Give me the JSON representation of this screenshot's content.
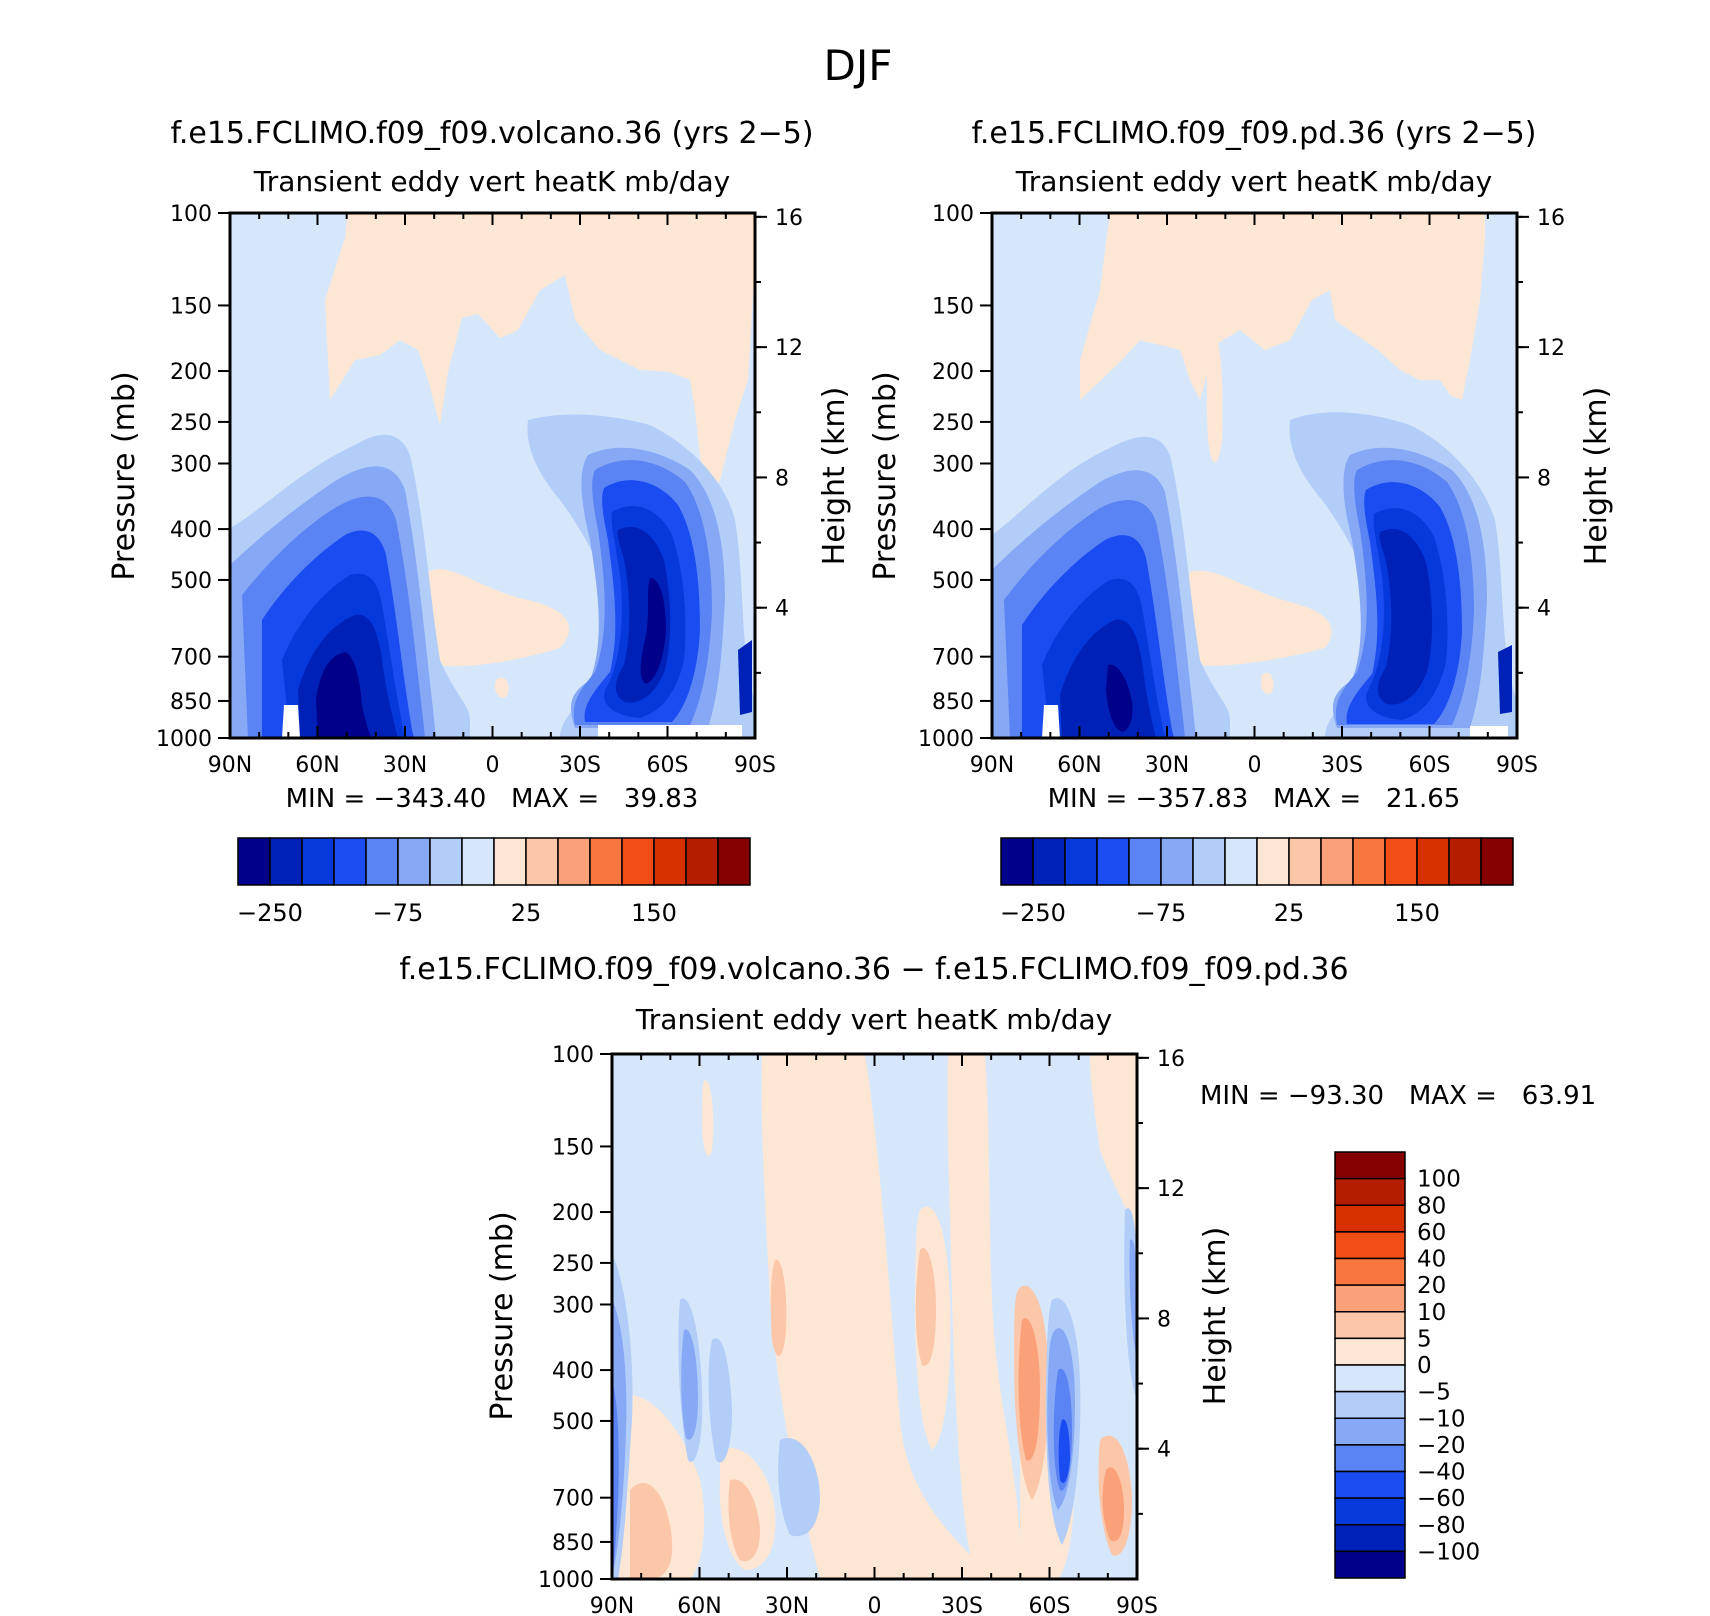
{
  "figure_title": "DJF",
  "colors": {
    "blue_dark": "#00008a",
    "blue": "#1d4de8",
    "blue_light": "#a9c6f6",
    "blue_pale": "#d6e7fb",
    "peach": "#fde7d4",
    "orange": "#f97a40",
    "red_dark": "#850000"
  },
  "chart_data": [
    {
      "type": "contour",
      "title": "f.e15.FCLIMO.f09_f09.volcano.36 (yrs 2−5)",
      "subtitle": "Transient eddy vert heatK mb/day",
      "ylabel": "Pressure (mb)",
      "y2label": "Height (km)",
      "x_ticks": [
        "90N",
        "60N",
        "30N",
        "0",
        "30S",
        "60S",
        "90S"
      ],
      "x_range": [
        90,
        -90
      ],
      "y_ticks": [
        100,
        150,
        200,
        250,
        300,
        400,
        500,
        700,
        850,
        1000
      ],
      "y_range": [
        100,
        1000
      ],
      "y_scale": "log",
      "y2_ticks": [
        16,
        12,
        8,
        4
      ],
      "stats": "MIN = −343.40   MAX =   39.83",
      "colorbar": {
        "orientation": "horizontal",
        "labels": [
          "−250",
          "−75",
          "25",
          "150"
        ],
        "colors": [
          "#00008a",
          "#0021b8",
          "#0539dc",
          "#1a4cf2",
          "#5a83f3",
          "#86a8f5",
          "#b3cdf9",
          "#d6e7fb",
          "#fde7d4",
          "#fcc6a8",
          "#fba17a",
          "#f9773f",
          "#f24d16",
          "#d83100",
          "#b41d00",
          "#850000"
        ]
      },
      "features": [
        {
          "name": "NH jet minimum",
          "lat": 45,
          "p": 650,
          "value_min": -343.4
        },
        {
          "name": "SH jet minimum",
          "lat": -58,
          "p": 700
        },
        {
          "name": "positive band aloft",
          "lat": [
            60,
            -60
          ],
          "p": [
            100,
            250
          ]
        }
      ]
    },
    {
      "type": "contour",
      "title": "f.e15.FCLIMO.f09_f09.pd.36 (yrs 2−5)",
      "subtitle": "Transient eddy vert heatK mb/day",
      "ylabel": "Pressure (mb)",
      "y2label": "Height (km)",
      "x_ticks": [
        "90N",
        "60N",
        "30N",
        "0",
        "30S",
        "60S",
        "90S"
      ],
      "x_range": [
        90,
        -90
      ],
      "y_ticks": [
        100,
        150,
        200,
        250,
        300,
        400,
        500,
        700,
        850,
        1000
      ],
      "y_range": [
        100,
        1000
      ],
      "y_scale": "log",
      "y2_ticks": [
        16,
        12,
        8,
        4
      ],
      "stats": "MIN = −357.83   MAX =   21.65",
      "colorbar": {
        "orientation": "horizontal",
        "labels": [
          "−250",
          "−75",
          "25",
          "150"
        ],
        "colors": [
          "#00008a",
          "#0021b8",
          "#0539dc",
          "#1a4cf2",
          "#5a83f3",
          "#86a8f5",
          "#b3cdf9",
          "#d6e7fb",
          "#fde7d4",
          "#fcc6a8",
          "#fba17a",
          "#f9773f",
          "#f24d16",
          "#d83100",
          "#b41d00",
          "#850000"
        ]
      },
      "features": [
        {
          "name": "NH jet minimum",
          "lat": 42,
          "p": 750,
          "value_min": -357.83
        },
        {
          "name": "SH jet minimum",
          "lat": -58,
          "p": 700
        }
      ]
    },
    {
      "type": "contour",
      "title": "f.e15.FCLIMO.f09_f09.volcano.36 − f.e15.FCLIMO.f09_f09.pd.36",
      "subtitle": "Transient eddy vert heatK mb/day",
      "ylabel": "Pressure (mb)",
      "y2label": "Height (km)",
      "x_ticks": [
        "90N",
        "60N",
        "30N",
        "0",
        "30S",
        "60S",
        "90S"
      ],
      "x_range": [
        90,
        -90
      ],
      "y_ticks": [
        100,
        150,
        200,
        250,
        300,
        400,
        500,
        700,
        850,
        1000
      ],
      "y_range": [
        100,
        1000
      ],
      "y_scale": "log",
      "y2_ticks": [
        16,
        12,
        8,
        4
      ],
      "stats": "MIN = −93.30   MAX =   63.91",
      "colorbar": {
        "orientation": "vertical",
        "labels": [
          "100",
          "80",
          "60",
          "40",
          "20",
          "10",
          "5",
          "0",
          "−5",
          "−10",
          "−20",
          "−40",
          "−60",
          "−80",
          "−100"
        ],
        "colors": [
          "#850000",
          "#b41d00",
          "#d83100",
          "#f24d16",
          "#f9773f",
          "#fba17a",
          "#fcc6a8",
          "#fde7d4",
          "#d6e7fb",
          "#b3cdf9",
          "#86a8f5",
          "#5a83f3",
          "#1a4cf2",
          "#0539dc",
          "#0021b8",
          "#00008a"
        ]
      },
      "features": [
        {
          "name": "SH negative core",
          "lat": -60,
          "p": 600,
          "value_min": -93.3
        },
        {
          "name": "SH positive band",
          "lat": -50,
          "p": 500
        },
        {
          "name": "NH low-level positive",
          "lat": 75,
          "p": 800
        }
      ]
    }
  ]
}
